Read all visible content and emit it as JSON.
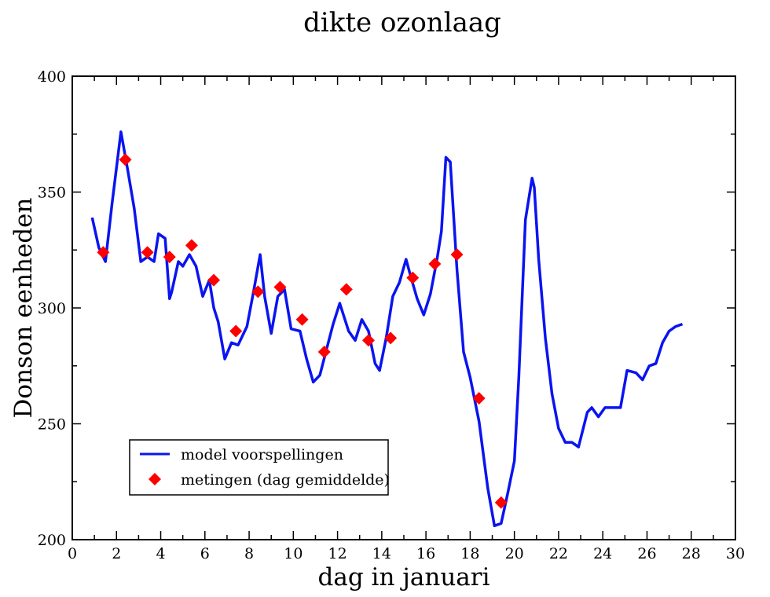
{
  "chart_data": {
    "type": "line",
    "title": "dikte ozonlaag",
    "xlabel": "dag in januari",
    "ylabel": "Donson eenheden",
    "xlim": [
      0,
      30
    ],
    "ylim": [
      200,
      400
    ],
    "x_ticks": [
      0,
      2,
      4,
      6,
      8,
      10,
      12,
      14,
      16,
      18,
      20,
      22,
      24,
      26,
      28,
      30
    ],
    "y_ticks": [
      200,
      250,
      300,
      350,
      400
    ],
    "grid": false,
    "legend_position": "bottom-left",
    "colors": {
      "model": "#0a14f0",
      "measurements": "#ff0000"
    },
    "series": [
      {
        "name": "model voorspellingen",
        "kind": "line",
        "x": [
          0.9,
          1.2,
          1.5,
          1.8,
          2.2,
          2.5,
          2.8,
          3.1,
          3.4,
          3.7,
          3.9,
          4.2,
          4.4,
          4.5,
          4.8,
          5.0,
          5.3,
          5.6,
          5.9,
          6.2,
          6.4,
          6.6,
          6.9,
          7.2,
          7.5,
          7.9,
          8.2,
          8.5,
          8.7,
          9.0,
          9.3,
          9.6,
          9.9,
          10.3,
          10.6,
          10.9,
          11.2,
          11.5,
          11.8,
          12.1,
          12.5,
          12.8,
          13.1,
          13.4,
          13.7,
          13.9,
          14.2,
          14.5,
          14.8,
          15.1,
          15.3,
          15.6,
          15.9,
          16.2,
          16.5,
          16.7,
          16.9,
          17.1,
          17.4,
          17.7,
          18.0,
          18.4,
          18.8,
          19.1,
          19.4,
          19.7,
          20.0,
          20.2,
          20.5,
          20.8,
          20.9,
          21.1,
          21.4,
          21.7,
          22.0,
          22.3,
          22.6,
          22.9,
          23.3,
          23.5,
          23.8,
          24.1,
          24.4,
          24.8,
          25.1,
          25.5,
          25.8,
          26.1,
          26.4,
          26.7,
          27.0,
          27.3,
          27.6
        ],
        "y": [
          339,
          326,
          320,
          345,
          376,
          360,
          343,
          320,
          322,
          320,
          332,
          330,
          304,
          307,
          320,
          318,
          323,
          318,
          305,
          312,
          300,
          294,
          278,
          285,
          284,
          292,
          307,
          323,
          305,
          289,
          305,
          308,
          291,
          290,
          278,
          268,
          271,
          282,
          293,
          302,
          290,
          286,
          295,
          290,
          276,
          273,
          287,
          305,
          311,
          321,
          314,
          304,
          297,
          306,
          321,
          333,
          365,
          363,
          317,
          281,
          270,
          251,
          222,
          206,
          207,
          220,
          234,
          270,
          338,
          356,
          352,
          321,
          287,
          263,
          248,
          242,
          242,
          240,
          255,
          257,
          253,
          257,
          257,
          257,
          273,
          272,
          269,
          275,
          276,
          285,
          290,
          292,
          293
        ]
      },
      {
        "name": "metingen (dag gemiddelde)",
        "kind": "scatter",
        "marker": "diamond",
        "x": [
          1.4,
          2.4,
          3.4,
          4.4,
          5.4,
          6.4,
          7.4,
          8.4,
          9.4,
          10.4,
          11.4,
          12.4,
          13.4,
          14.4,
          15.4,
          16.4,
          17.4,
          18.4,
          19.4
        ],
        "y": [
          324,
          364,
          324,
          322,
          327,
          312,
          290,
          307,
          309,
          295,
          281,
          308,
          286,
          287,
          313,
          319,
          323,
          261,
          216
        ]
      }
    ]
  }
}
